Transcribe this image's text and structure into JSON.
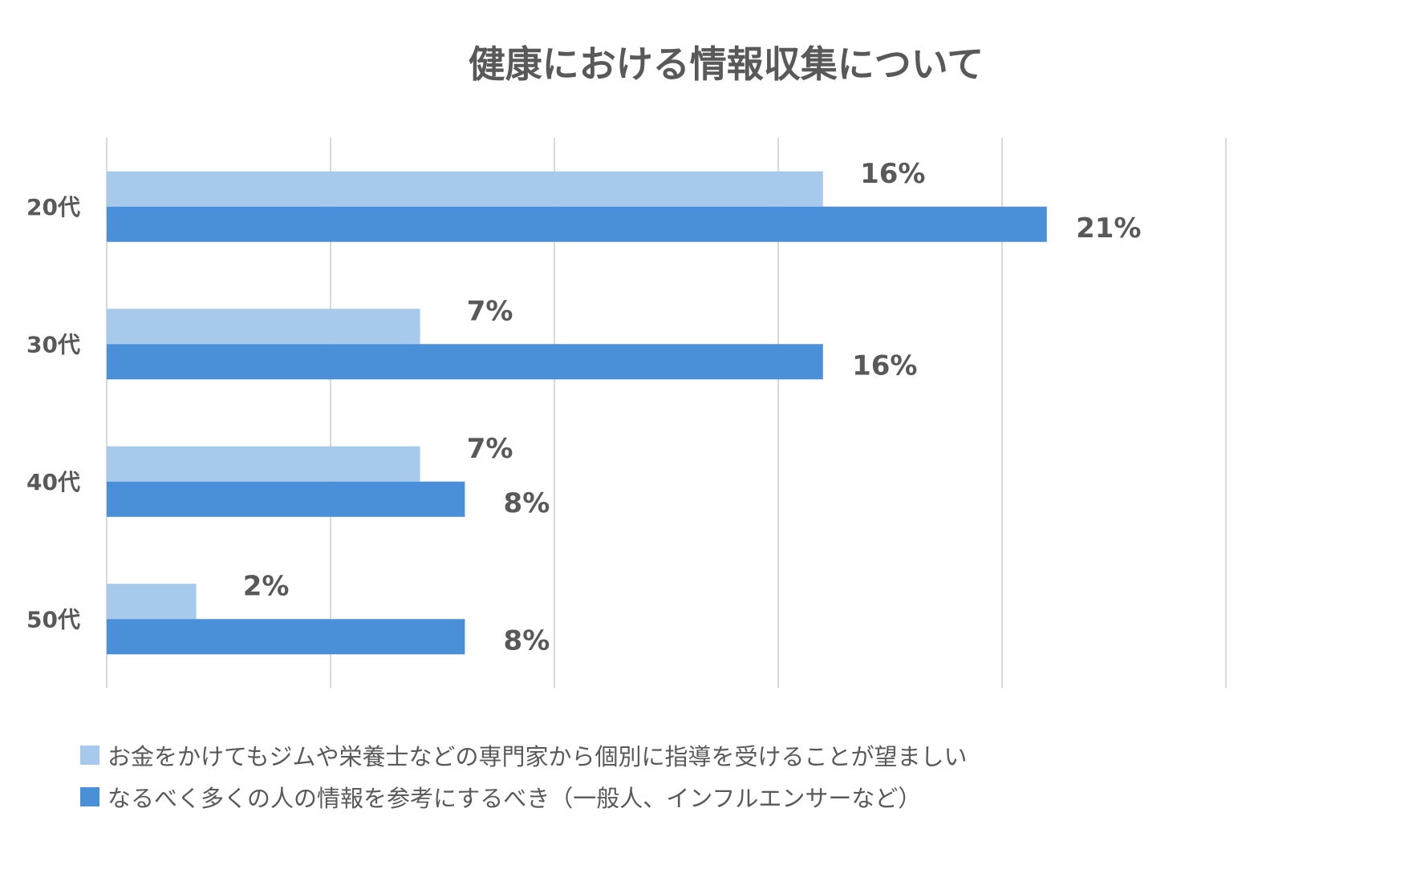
{
  "chart_data": {
    "type": "bar",
    "orientation": "horizontal",
    "title": "健康における情報収集について",
    "categories": [
      "20代",
      "30代",
      "40代",
      "50代"
    ],
    "series": [
      {
        "name": "お金をかけてもジムや栄養士などの専門家から個別に指導を受けることが望ましい",
        "color": "#a7c9ec",
        "values": [
          16,
          7,
          7,
          2
        ],
        "labels": [
          "16%",
          "7%",
          "7%",
          "2%"
        ]
      },
      {
        "name": "なるべく多くの人の情報を参考にするべき（一般人、インフルエンサーなど）",
        "color": "#4a90d9",
        "values": [
          21,
          16,
          8,
          8
        ],
        "labels": [
          "21%",
          "16%",
          "8%",
          "8%"
        ]
      }
    ],
    "xlim": [
      0,
      25
    ],
    "gridlines": [
      0,
      5,
      10,
      15,
      20,
      25
    ],
    "grid": true,
    "legend_position": "bottom"
  }
}
